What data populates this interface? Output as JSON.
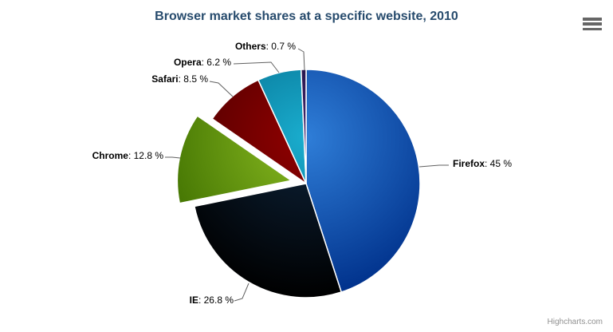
{
  "credits": "Highcharts.com",
  "chart_data": {
    "type": "pie",
    "title": "Browser market shares at a specific website, 2010",
    "title_color": "#274b6d",
    "unit": "%",
    "legend": "none",
    "label_format": "<b>{name}</b>: {value} %",
    "connector_color": "#606060",
    "border_color": "#ffffff",
    "start_angle_deg": 0,
    "direction": "clockwise",
    "points": [
      {
        "name": "Firefox",
        "value": 45,
        "label_suffix": ": 45 %",
        "color": "#2f7ed8",
        "sliced": false
      },
      {
        "name": "IE",
        "value": 26.8,
        "label_suffix": ": 26.8 %",
        "color": "#0d233a",
        "sliced": false
      },
      {
        "name": "Chrome",
        "value": 12.8,
        "label_suffix": ": 12.8 %",
        "color": "#8bbc21",
        "sliced": true
      },
      {
        "name": "Safari",
        "value": 8.5,
        "label_suffix": ": 8.5 %",
        "color": "#910000",
        "sliced": false
      },
      {
        "name": "Opera",
        "value": 6.2,
        "label_suffix": ": 6.2 %",
        "color": "#1aadce",
        "sliced": false
      },
      {
        "name": "Others",
        "value": 0.7,
        "label_suffix": ": 0.7 %",
        "color": "#492970",
        "sliced": false
      }
    ]
  }
}
